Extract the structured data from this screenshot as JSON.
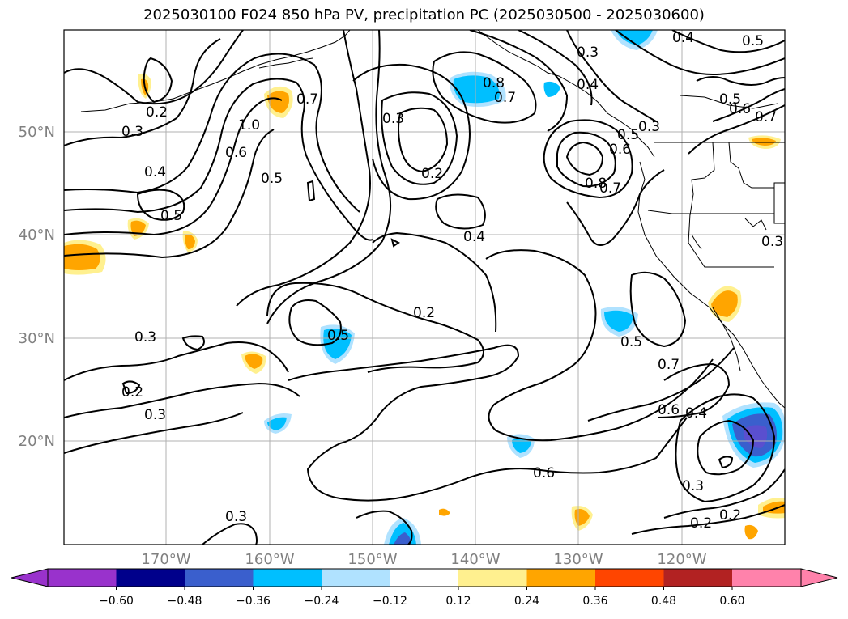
{
  "title": "2025030100 F024 850 hPa PV, precipitation PC (2025030500 - 2025030600)",
  "lat_labels": [
    "50°N",
    "40°N",
    "30°N",
    "20°N"
  ],
  "lon_labels": [
    "170°W",
    "160°W",
    "150°W",
    "140°W",
    "130°W",
    "120°W"
  ],
  "colorbar": {
    "ticks": [
      "−0.60",
      "−0.48",
      "−0.36",
      "−0.24",
      "−0.12",
      "0.12",
      "0.24",
      "0.36",
      "0.48",
      "0.60"
    ],
    "colors": [
      "#9932cc",
      "#00008b",
      "#3a5fcd",
      "#00bfff",
      "#b0e2ff",
      "#ffffff",
      "#fff08f",
      "#ffa500",
      "#ff4500",
      "#b22222",
      "#ff82ab",
      "#ff82ab"
    ]
  },
  "contour_labels": [
    "0.2",
    "0.3",
    "0.4",
    "0.5",
    "1.0",
    "0.6",
    "0.5",
    "0.7",
    "0.3",
    "0.2",
    "0.8",
    "0.7",
    "0.3",
    "0.4",
    "0.5",
    "0.3",
    "0.6",
    "0.8",
    "0.7",
    "0.5",
    "0.6",
    "0.7",
    "0.5",
    "0.4",
    "0.4",
    "0.5",
    "0.3",
    "0.2",
    "0.3",
    "0.2",
    "0.5",
    "0.7",
    "0.6",
    "0.4",
    "0.6",
    "0.3",
    "0.2",
    "0.2",
    "0.3",
    "0.3"
  ]
}
